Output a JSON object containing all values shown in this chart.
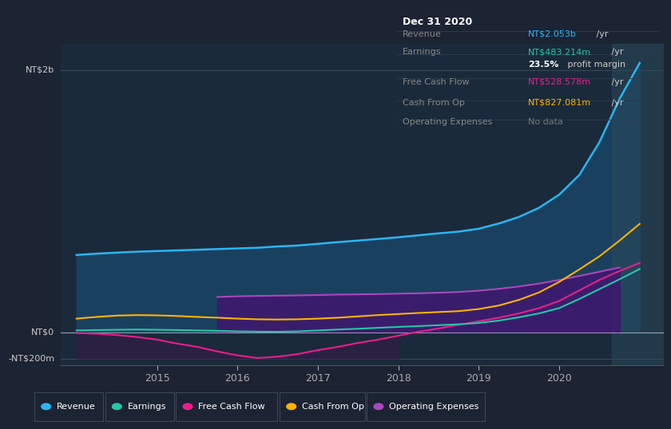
{
  "bg_color": "#1c2333",
  "plot_bg": "#1a2a3a",
  "ylim": [
    -250,
    2200
  ],
  "xlim": [
    2013.8,
    2021.3
  ],
  "xticks": [
    2015,
    2016,
    2017,
    2018,
    2019,
    2020
  ],
  "ylabel_top": "NT$2b",
  "ylabel_zero": "NT$0",
  "ylabel_neg": "-NT$200m",
  "y_top": 2000,
  "y_zero": 0,
  "y_neg": -200,
  "series": {
    "revenue": {
      "color": "#29b6f6",
      "fill_color": "#1a4060",
      "x": [
        2014.0,
        2014.25,
        2014.5,
        2014.75,
        2015.0,
        2015.25,
        2015.5,
        2015.75,
        2016.0,
        2016.25,
        2016.5,
        2016.75,
        2017.0,
        2017.25,
        2017.5,
        2017.75,
        2018.0,
        2018.25,
        2018.5,
        2018.75,
        2019.0,
        2019.25,
        2019.5,
        2019.75,
        2020.0,
        2020.25,
        2020.5,
        2020.75,
        2021.0
      ],
      "y": [
        590,
        600,
        608,
        615,
        620,
        625,
        630,
        635,
        640,
        645,
        655,
        662,
        675,
        688,
        700,
        712,
        725,
        740,
        755,
        768,
        790,
        830,
        880,
        950,
        1050,
        1200,
        1450,
        1780,
        2053
      ]
    },
    "earnings": {
      "color": "#26c6a6",
      "x": [
        2014.0,
        2014.25,
        2014.5,
        2014.75,
        2015.0,
        2015.25,
        2015.5,
        2015.75,
        2016.0,
        2016.25,
        2016.5,
        2016.75,
        2017.0,
        2017.25,
        2017.5,
        2017.75,
        2018.0,
        2018.25,
        2018.5,
        2018.75,
        2019.0,
        2019.25,
        2019.5,
        2019.75,
        2020.0,
        2020.25,
        2020.5,
        2020.75,
        2021.0
      ],
      "y": [
        15,
        18,
        20,
        22,
        20,
        18,
        15,
        12,
        8,
        6,
        5,
        8,
        15,
        22,
        28,
        35,
        42,
        48,
        55,
        62,
        72,
        90,
        115,
        145,
        185,
        255,
        330,
        405,
        483
      ]
    },
    "free_cash_flow": {
      "color": "#e91e8c",
      "x": [
        2014.0,
        2014.25,
        2014.5,
        2014.75,
        2015.0,
        2015.25,
        2015.5,
        2015.75,
        2016.0,
        2016.25,
        2016.5,
        2016.75,
        2017.0,
        2017.25,
        2017.5,
        2017.75,
        2018.0,
        2018.25,
        2018.5,
        2018.75,
        2019.0,
        2019.25,
        2019.5,
        2019.75,
        2020.0,
        2020.25,
        2020.5,
        2020.75,
        2021.0
      ],
      "y": [
        -5,
        -10,
        -20,
        -35,
        -55,
        -85,
        -110,
        -145,
        -175,
        -195,
        -185,
        -165,
        -135,
        -110,
        -80,
        -55,
        -25,
        5,
        30,
        58,
        85,
        112,
        145,
        185,
        240,
        320,
        400,
        468,
        529
      ]
    },
    "cash_from_op": {
      "color": "#ffb300",
      "x": [
        2014.0,
        2014.25,
        2014.5,
        2014.75,
        2015.0,
        2015.25,
        2015.5,
        2015.75,
        2016.0,
        2016.25,
        2016.5,
        2016.75,
        2017.0,
        2017.25,
        2017.5,
        2017.75,
        2018.0,
        2018.25,
        2018.5,
        2018.75,
        2019.0,
        2019.25,
        2019.5,
        2019.75,
        2020.0,
        2020.25,
        2020.5,
        2020.75,
        2021.0
      ],
      "y": [
        105,
        118,
        128,
        132,
        130,
        125,
        118,
        112,
        105,
        100,
        98,
        100,
        105,
        112,
        122,
        132,
        140,
        148,
        155,
        162,
        178,
        205,
        248,
        305,
        385,
        480,
        580,
        700,
        827
      ]
    },
    "operating_expenses": {
      "color": "#ab47bc",
      "fill_color": "#3d1a6e",
      "x": [
        2015.75,
        2016.0,
        2016.25,
        2016.5,
        2016.75,
        2017.0,
        2017.25,
        2017.5,
        2017.75,
        2018.0,
        2018.25,
        2018.5,
        2018.75,
        2019.0,
        2019.25,
        2019.5,
        2019.75,
        2020.0,
        2020.25,
        2020.5,
        2020.75
      ],
      "y": [
        270,
        275,
        278,
        280,
        282,
        285,
        288,
        290,
        292,
        295,
        298,
        302,
        308,
        318,
        332,
        350,
        372,
        400,
        430,
        462,
        495
      ]
    }
  },
  "info_box": {
    "title": "Dec 31 2020",
    "rows": [
      {
        "label": "Revenue",
        "value": "NT$2.053b",
        "suffix": " /yr",
        "value_color": "#29b6f6"
      },
      {
        "label": "Earnings",
        "value": "NT$483.214m",
        "suffix": " /yr",
        "value_color": "#26c6a6"
      },
      {
        "label": "",
        "value": "23.5%",
        "suffix": " profit margin",
        "value_color": "#ffffff",
        "bold": true
      },
      {
        "label": "Free Cash Flow",
        "value": "NT$528.578m",
        "suffix": " /yr",
        "value_color": "#e91e8c"
      },
      {
        "label": "Cash From Op",
        "value": "NT$827.081m",
        "suffix": " /yr",
        "value_color": "#ffb300"
      },
      {
        "label": "Operating Expenses",
        "value": "No data",
        "suffix": "",
        "value_color": "#777777"
      }
    ]
  },
  "legend": [
    {
      "label": "Revenue",
      "color": "#29b6f6"
    },
    {
      "label": "Earnings",
      "color": "#26c6a6"
    },
    {
      "label": "Free Cash Flow",
      "color": "#e91e8c"
    },
    {
      "label": "Cash From Op",
      "color": "#ffb300"
    },
    {
      "label": "Operating Expenses",
      "color": "#ab47bc"
    }
  ]
}
